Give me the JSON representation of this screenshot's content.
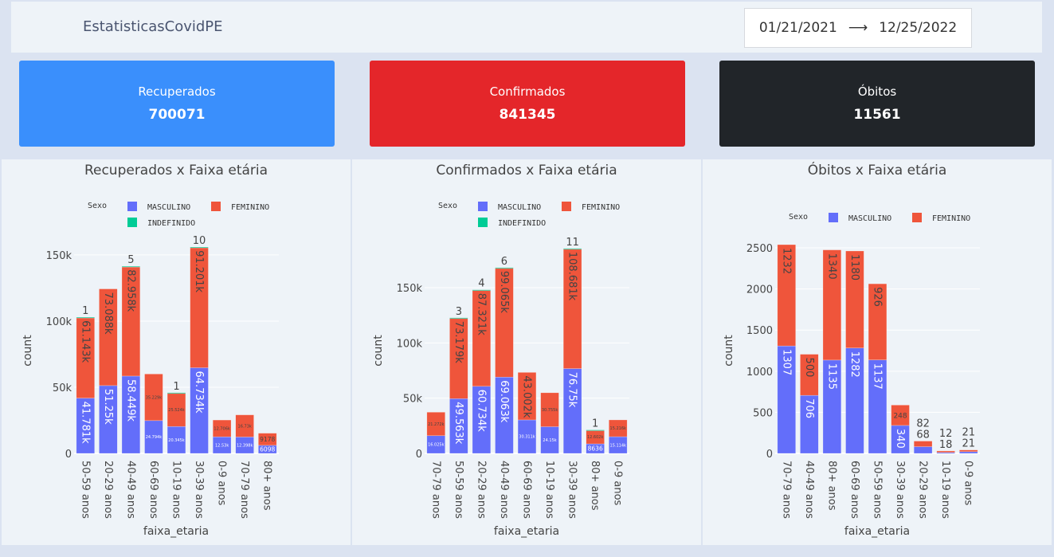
{
  "header": {
    "title": "EstatisticasCovidPE",
    "date_start": "01/21/2021",
    "date_arrow": "⟶",
    "date_end": "12/25/2022"
  },
  "cards": [
    {
      "label": "Recuperados",
      "value": "700071",
      "color": "#3a8ffc"
    },
    {
      "label": "Confirmados",
      "value": "841345",
      "color": "#e4262a"
    },
    {
      "label": "Óbitos",
      "value": "11561",
      "color": "#212529"
    }
  ],
  "colors": {
    "MASCULINO": "#636efa",
    "FEMININO": "#ef553b",
    "INDEFINIDO": "#00cc96"
  },
  "chart_data": [
    {
      "type": "bar",
      "title": "Recuperados x Faixa etária",
      "xlabel": "faixa_etaria",
      "ylabel": "count",
      "legend_title": "Sexo",
      "ylim": [
        0,
        162000
      ],
      "yticks": [
        0,
        50000,
        100000,
        150000
      ],
      "ytick_labels": [
        "0",
        "50k",
        "100k",
        "150k"
      ],
      "categories": [
        "50-59 anos",
        "20-29 anos",
        "40-49 anos",
        "60-69 anos",
        "10-19 anos",
        "30-39 anos",
        "0-9 anos",
        "70-79 anos",
        "80+ anos"
      ],
      "series": [
        {
          "name": "MASCULINO",
          "values": [
            41781,
            51250,
            58449,
            24794,
            20345,
            64734,
            12530,
            12398,
            6098
          ],
          "labels": [
            "41.781k",
            "51.25k",
            "58.449k",
            "24.794k",
            "20.345k",
            "64.734k",
            "12.53k",
            "12.398k",
            "6098"
          ]
        },
        {
          "name": "FEMININO",
          "values": [
            61143,
            73088,
            82958,
            35229,
            25524,
            91201,
            12706,
            16730,
            9178
          ],
          "labels": [
            "61.143k",
            "73.088k",
            "82.958k",
            "35.229k",
            "25.524k",
            "91.201k",
            "12.706k",
            "16.73k",
            "9178"
          ]
        },
        {
          "name": "INDEFINIDO",
          "values": [
            1,
            0,
            5,
            0,
            1,
            10,
            0,
            0,
            0
          ],
          "labels": [
            "1",
            "",
            "5",
            "",
            "1",
            "10",
            "",
            "",
            ""
          ]
        }
      ]
    },
    {
      "type": "bar",
      "title": "Confirmados x Faixa etária",
      "xlabel": "faixa_etaria",
      "ylabel": "count",
      "legend_title": "Sexo",
      "ylim": [
        0,
        194000
      ],
      "yticks": [
        0,
        50000,
        100000,
        150000
      ],
      "ytick_labels": [
        "0",
        "50k",
        "100k",
        "150k"
      ],
      "categories": [
        "70-79 anos",
        "50-59 anos",
        "20-29 anos",
        "40-49 anos",
        "60-69 anos",
        "10-19 anos",
        "30-39 anos",
        "80+ anos",
        "0-9 anos"
      ],
      "series": [
        {
          "name": "MASCULINO",
          "values": [
            16025,
            49563,
            60734,
            69063,
            30311,
            24150,
            76750,
            8636,
            15114
          ],
          "labels": [
            "16.025k",
            "49.563k",
            "60.734k",
            "69.063k",
            "30.311k",
            "24.15k",
            "76.75k",
            "8636",
            "15.114k"
          ]
        },
        {
          "name": "FEMININO",
          "values": [
            21272,
            73179,
            87321,
            99065,
            43002,
            30755,
            108681,
            12602,
            15216
          ],
          "labels": [
            "21.272k",
            "73.179k",
            "87.321k",
            "99.065k",
            "43.002k",
            "30.755k",
            "108.681k",
            "12.602k",
            "15.216k"
          ]
        },
        {
          "name": "INDEFINIDO",
          "values": [
            0,
            3,
            4,
            6,
            0,
            0,
            11,
            1,
            0
          ],
          "labels": [
            "",
            "3",
            "4",
            "6",
            "",
            "",
            "11",
            "1",
            ""
          ]
        }
      ]
    },
    {
      "type": "bar",
      "title": "Óbitos x Faixa etária",
      "xlabel": "faixa_etaria",
      "ylabel": "count",
      "legend_title": "Sexo",
      "ylim": [
        0,
        2607
      ],
      "yticks": [
        0,
        500,
        1000,
        1500,
        2000,
        2500
      ],
      "ytick_labels": [
        "0",
        "500",
        "1000",
        "1500",
        "2000",
        "2500"
      ],
      "categories": [
        "70-79 anos",
        "40-49 anos",
        "80+ anos",
        "60-69 anos",
        "50-59 anos",
        "30-39 anos",
        "20-29 anos",
        "10-19 anos",
        "0-9 anos"
      ],
      "series": [
        {
          "name": "MASCULINO",
          "values": [
            1307,
            706,
            1135,
            1282,
            1137,
            340,
            82,
            12,
            21
          ],
          "labels": [
            "1307",
            "706",
            "1135",
            "1282",
            "1137",
            "340",
            "82",
            "12",
            "21"
          ]
        },
        {
          "name": "FEMININO",
          "values": [
            1232,
            500,
            1340,
            1180,
            926,
            248,
            68,
            18,
            21
          ],
          "labels": [
            "1232",
            "500",
            "1340",
            "1180",
            "926",
            "248",
            "68",
            "18",
            "21"
          ]
        }
      ]
    }
  ]
}
